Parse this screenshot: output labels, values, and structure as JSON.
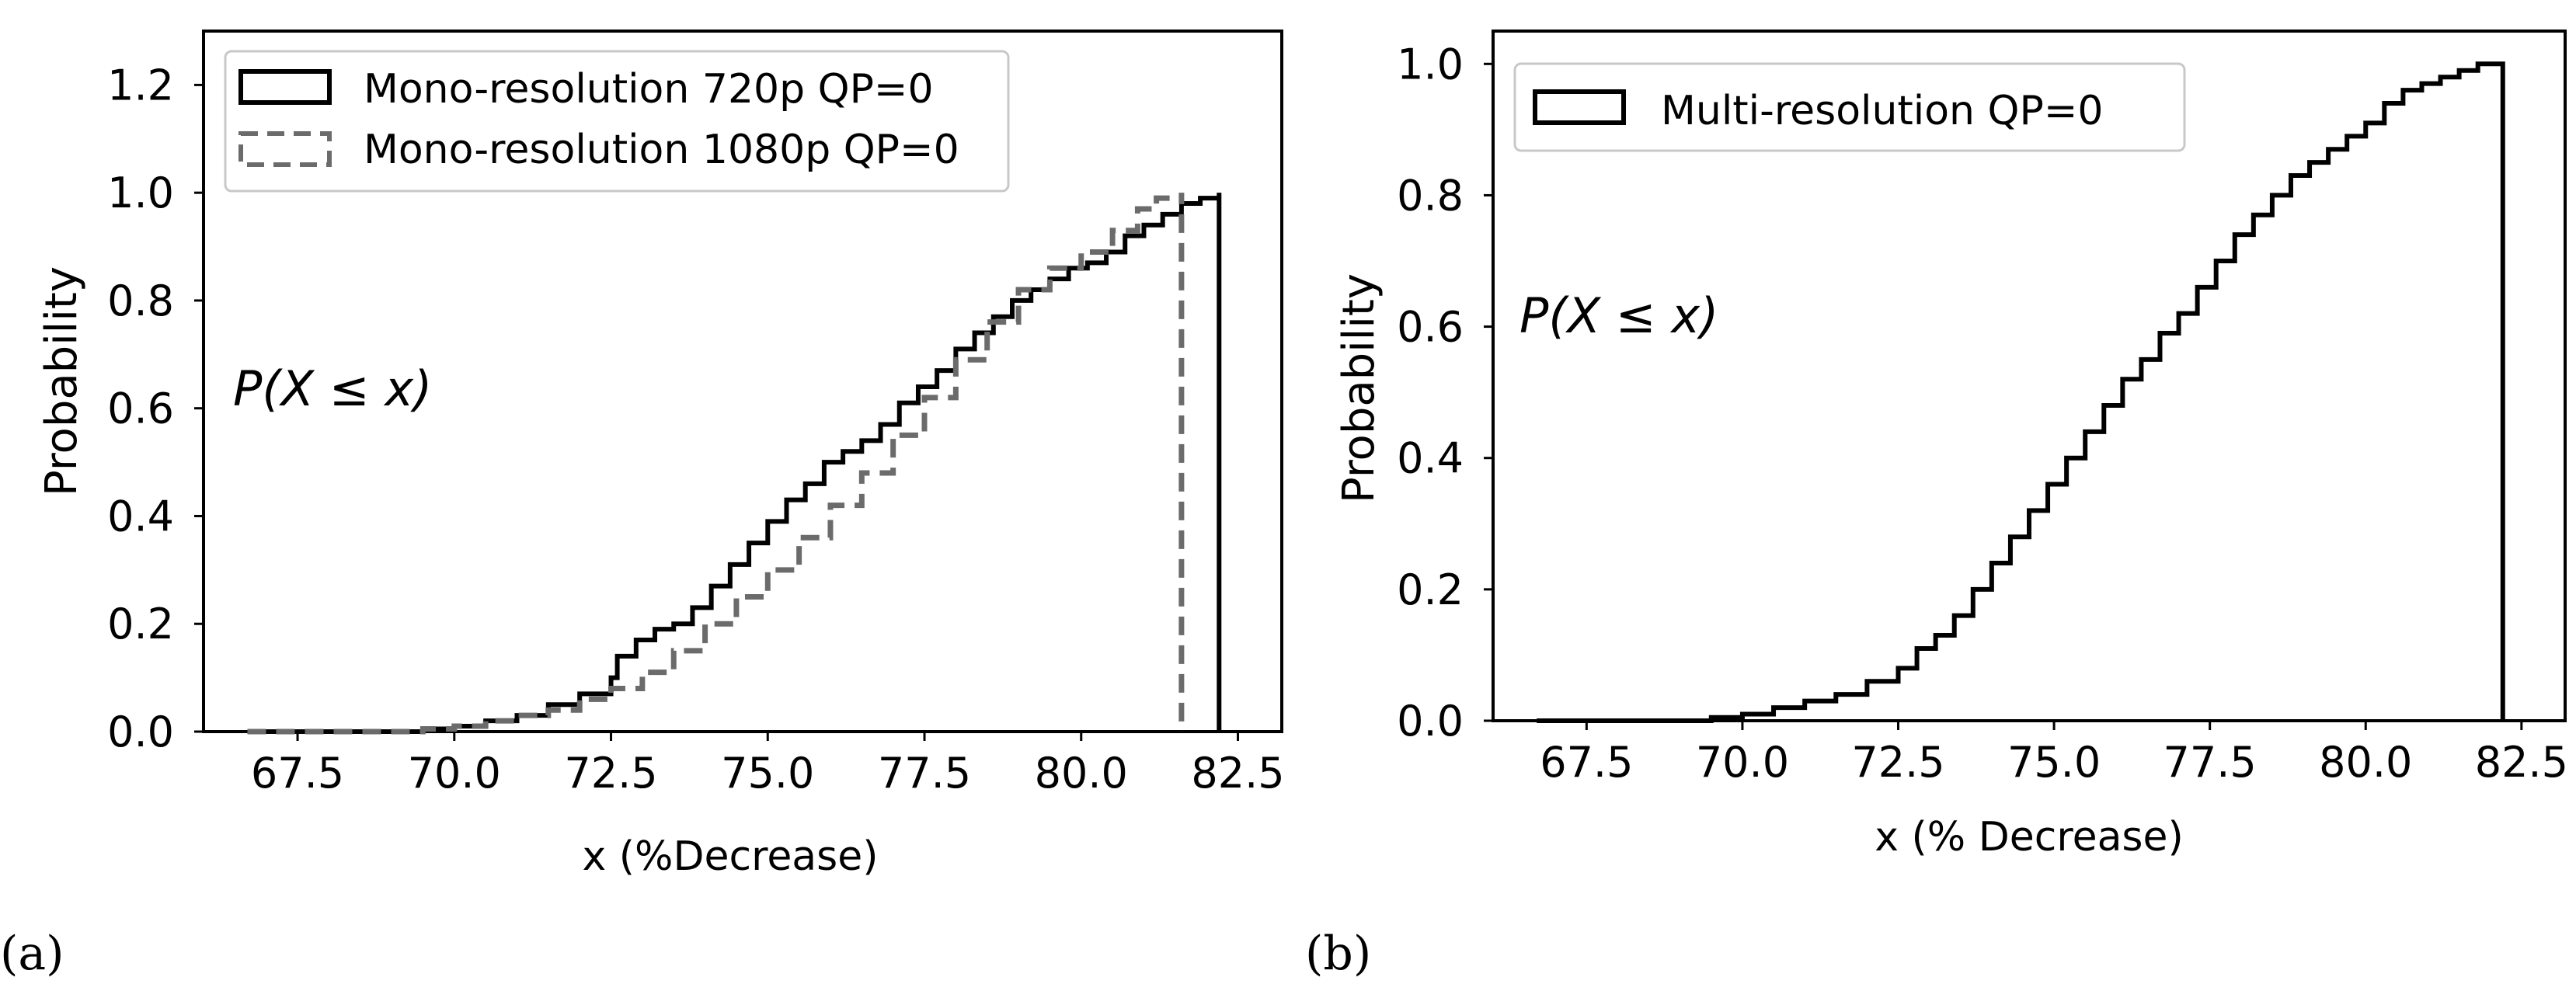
{
  "chart_data": [
    {
      "panel_label": "(a)",
      "type": "line",
      "subtype": "cumulative-step",
      "xlabel": "x (%Decrease)",
      "ylabel": "Probability",
      "annotation": "P(X ≤ x)",
      "xlim": [
        66.0,
        83.2
      ],
      "ylim": [
        0.0,
        1.3
      ],
      "xticks": [
        67.5,
        70.0,
        72.5,
        75.0,
        77.5,
        80.0,
        82.5
      ],
      "xtick_labels": [
        "67.5",
        "70.0",
        "72.5",
        "75.0",
        "77.5",
        "80.0",
        "82.5"
      ],
      "yticks": [
        0.0,
        0.2,
        0.4,
        0.6,
        0.8,
        1.0,
        1.2
      ],
      "ytick_labels": [
        "0.0",
        "0.2",
        "0.4",
        "0.6",
        "0.8",
        "1.0",
        "1.2"
      ],
      "legend_position": "top-left",
      "series": [
        {
          "name": "Mono-resolution 720p QP=0",
          "style": "solid",
          "color": "#000000",
          "x": [
            66.7,
            69.5,
            70.0,
            70.5,
            71.0,
            71.5,
            72.0,
            72.5,
            72.6,
            72.9,
            73.2,
            73.5,
            73.8,
            74.1,
            74.4,
            74.7,
            75.0,
            75.3,
            75.6,
            75.9,
            76.2,
            76.5,
            76.8,
            77.1,
            77.4,
            77.7,
            78.0,
            78.3,
            78.6,
            78.9,
            79.2,
            79.5,
            79.8,
            80.1,
            80.4,
            80.7,
            81.0,
            81.3,
            81.6,
            81.9,
            82.2
          ],
          "values": [
            0.0,
            0.005,
            0.01,
            0.02,
            0.03,
            0.05,
            0.07,
            0.1,
            0.14,
            0.17,
            0.19,
            0.2,
            0.23,
            0.27,
            0.31,
            0.35,
            0.39,
            0.43,
            0.46,
            0.5,
            0.52,
            0.54,
            0.57,
            0.61,
            0.64,
            0.67,
            0.71,
            0.74,
            0.77,
            0.8,
            0.82,
            0.84,
            0.86,
            0.87,
            0.89,
            0.92,
            0.94,
            0.96,
            0.98,
            0.99,
            1.0
          ]
        },
        {
          "name": "Mono-resolution 1080p QP=0",
          "style": "dashed",
          "color": "#6b6b6b",
          "x": [
            66.7,
            69.5,
            70.0,
            70.5,
            71.0,
            71.5,
            72.0,
            72.5,
            73.0,
            73.5,
            74.0,
            74.5,
            75.0,
            75.5,
            76.0,
            76.5,
            77.0,
            77.5,
            78.0,
            78.5,
            79.0,
            79.5,
            80.0,
            80.5,
            80.9,
            81.2,
            81.6
          ],
          "values": [
            0.0,
            0.005,
            0.01,
            0.02,
            0.03,
            0.04,
            0.06,
            0.08,
            0.11,
            0.15,
            0.2,
            0.25,
            0.3,
            0.36,
            0.42,
            0.48,
            0.55,
            0.62,
            0.69,
            0.76,
            0.82,
            0.86,
            0.89,
            0.93,
            0.97,
            0.99,
            1.0
          ]
        }
      ]
    },
    {
      "panel_label": "(b)",
      "type": "line",
      "subtype": "cumulative-step",
      "xlabel": "x (%  Decrease)",
      "ylabel": "Probability",
      "annotation": "P(X ≤ x)",
      "xlim": [
        66.0,
        83.2
      ],
      "ylim": [
        0.0,
        1.05
      ],
      "xticks": [
        67.5,
        70.0,
        72.5,
        75.0,
        77.5,
        80.0,
        82.5
      ],
      "xtick_labels": [
        "67.5",
        "70.0",
        "72.5",
        "75.0",
        "77.5",
        "80.0",
        "82.5"
      ],
      "yticks": [
        0.0,
        0.2,
        0.4,
        0.6,
        0.8,
        1.0
      ],
      "ytick_labels": [
        "0.0",
        "0.2",
        "0.4",
        "0.6",
        "0.8",
        "1.0"
      ],
      "legend_position": "top-left",
      "series": [
        {
          "name": "Multi-resolution QP=0",
          "style": "solid",
          "color": "#000000",
          "x": [
            66.7,
            69.5,
            70.0,
            70.5,
            71.0,
            71.5,
            72.0,
            72.5,
            72.8,
            73.1,
            73.4,
            73.7,
            74.0,
            74.3,
            74.6,
            74.9,
            75.2,
            75.5,
            75.8,
            76.1,
            76.4,
            76.7,
            77.0,
            77.3,
            77.6,
            77.9,
            78.2,
            78.5,
            78.8,
            79.1,
            79.4,
            79.7,
            80.0,
            80.3,
            80.6,
            80.9,
            81.2,
            81.5,
            81.8,
            82.2
          ],
          "values": [
            0.0,
            0.005,
            0.01,
            0.02,
            0.03,
            0.04,
            0.06,
            0.08,
            0.11,
            0.13,
            0.16,
            0.2,
            0.24,
            0.28,
            0.32,
            0.36,
            0.4,
            0.44,
            0.48,
            0.52,
            0.55,
            0.59,
            0.62,
            0.66,
            0.7,
            0.74,
            0.77,
            0.8,
            0.83,
            0.85,
            0.87,
            0.89,
            0.91,
            0.94,
            0.96,
            0.97,
            0.98,
            0.99,
            1.0,
            1.0
          ]
        }
      ]
    }
  ]
}
